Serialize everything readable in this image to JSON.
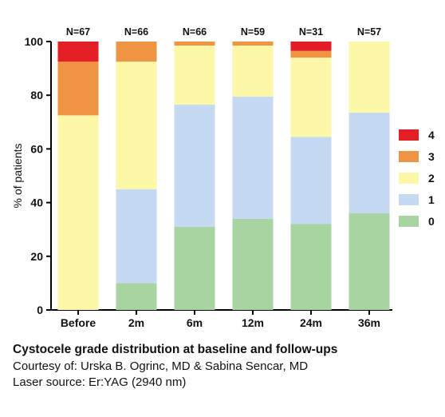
{
  "chart_data": {
    "type": "bar",
    "stacked": true,
    "categories": [
      "Before",
      "2m",
      "6m",
      "12m",
      "24m",
      "36m"
    ],
    "n_labels": [
      "N=67",
      "N=66",
      "N=66",
      "N=59",
      "N=31",
      "N=57"
    ],
    "ylabel": "% of patients",
    "xlabel": "",
    "ylim": [
      0,
      100
    ],
    "yticks": [
      0,
      20,
      40,
      60,
      80,
      100
    ],
    "grid": false,
    "legend_position": "right",
    "series": [
      {
        "name": "0",
        "color": "#a8d4a2",
        "values": [
          0,
          10,
          31,
          34,
          32,
          36
        ]
      },
      {
        "name": "1",
        "color": "#c5daf2",
        "values": [
          0,
          35,
          45.5,
          45.5,
          32.5,
          37.5
        ]
      },
      {
        "name": "2",
        "color": "#fdf7a8",
        "values": [
          72.5,
          47.5,
          22,
          19,
          29.5,
          26.5
        ]
      },
      {
        "name": "3",
        "color": "#ef9442",
        "values": [
          20,
          7.5,
          1.5,
          1.5,
          2.5,
          0
        ]
      },
      {
        "name": "4",
        "color": "#e31e24",
        "values": [
          7.5,
          0,
          0,
          0,
          3.5,
          0
        ]
      }
    ]
  },
  "caption": {
    "title": "Cystocele grade distribution at baseline and follow-ups",
    "credit": "Courtesy of: Urska B. Ogrinc, MD & Sabina Sencar, MD",
    "source": "Laser source: Er:YAG (2940 nm)"
  }
}
